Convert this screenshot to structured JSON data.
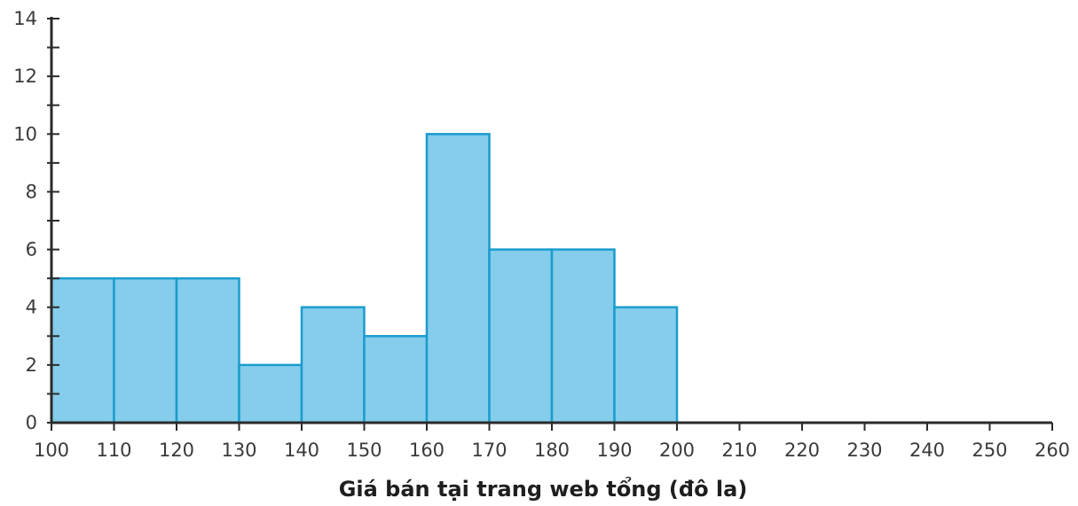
{
  "chart_data": {
    "type": "bar",
    "title": "",
    "xlabel": "Giá bán tại trang web tổng (đô la)",
    "ylabel": "",
    "bins": [
      {
        "start": 100,
        "end": 110,
        "value": 5
      },
      {
        "start": 110,
        "end": 120,
        "value": 5
      },
      {
        "start": 120,
        "end": 130,
        "value": 5
      },
      {
        "start": 130,
        "end": 140,
        "value": 2
      },
      {
        "start": 140,
        "end": 150,
        "value": 4
      },
      {
        "start": 150,
        "end": 160,
        "value": 3
      },
      {
        "start": 160,
        "end": 170,
        "value": 10
      },
      {
        "start": 170,
        "end": 180,
        "value": 6
      },
      {
        "start": 180,
        "end": 190,
        "value": 6
      },
      {
        "start": 190,
        "end": 200,
        "value": 4
      }
    ],
    "xlim": [
      100,
      260
    ],
    "ylim": [
      0,
      14
    ],
    "x_ticks": [
      100,
      110,
      120,
      130,
      140,
      150,
      160,
      170,
      180,
      190,
      200,
      210,
      220,
      230,
      240,
      250,
      260
    ],
    "x_tick_labels": [
      "100",
      "110",
      "120",
      "130",
      "140",
      "150",
      "160",
      "170",
      "180",
      "190",
      "200",
      "210",
      "220",
      "230",
      "240",
      "250",
      "260"
    ],
    "y_ticks": [
      0,
      2,
      4,
      6,
      8,
      10,
      12,
      14
    ],
    "y_tick_labels": [
      "0",
      "2",
      "4",
      "6",
      "8",
      "10",
      "12",
      "14"
    ],
    "y_minor_step": 1,
    "grid": false,
    "legend": "none",
    "colors": {
      "bar_fill": "#85CDEB",
      "bar_stroke": "#1A9CCF",
      "axis": "#2b2b2b"
    }
  }
}
